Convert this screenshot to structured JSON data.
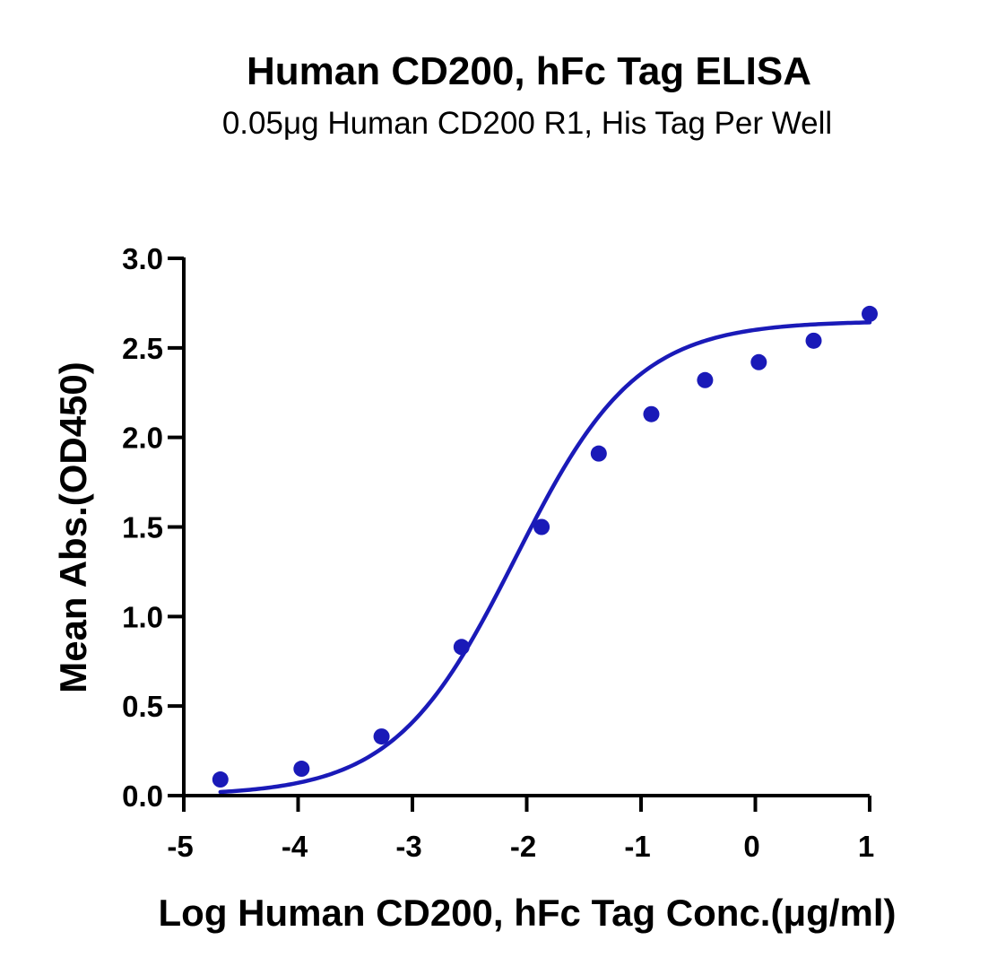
{
  "chart_data": {
    "type": "scatter",
    "title": "Human CD200, hFc Tag ELISA",
    "subtitle": "0.05μg Human CD200 R1, His Tag Per Well",
    "xlabel": "Log Human CD200, hFc Tag Conc.(μg/ml)",
    "ylabel": "Mean Abs.(OD450)",
    "xlim": [
      -5,
      1
    ],
    "ylim": [
      0,
      3.0
    ],
    "x_ticks": [
      -5,
      -4,
      -3,
      -2,
      -1,
      0,
      1
    ],
    "x_tick_labels": [
      "-5",
      "-4",
      "-3",
      "-2",
      "-1",
      "0",
      "1"
    ],
    "y_ticks": [
      0,
      0.5,
      1.0,
      1.5,
      2.0,
      2.5,
      3.0
    ],
    "y_tick_labels": [
      "0.0",
      "0.5",
      "1.0",
      "1.5",
      "2.0",
      "2.5",
      "3.0"
    ],
    "grid": false,
    "legend": "none",
    "series": [
      {
        "marker_color": "#1a1ab8",
        "x": [
          -4.68,
          -3.97,
          -3.27,
          -2.57,
          -1.87,
          -1.37,
          -0.91,
          -0.44,
          0.03,
          0.51,
          1.0
        ],
        "y": [
          0.09,
          0.15,
          0.33,
          0.83,
          1.5,
          1.91,
          2.13,
          2.32,
          2.42,
          2.54,
          2.69
        ]
      }
    ],
    "fit_curve": {
      "type": "4PL",
      "color": "#1a1ab8",
      "bottom": 0.0,
      "top": 2.65,
      "log_ec50": -2.1,
      "hill_slope": 0.82,
      "x_range": [
        -4.68,
        1.0
      ]
    }
  }
}
